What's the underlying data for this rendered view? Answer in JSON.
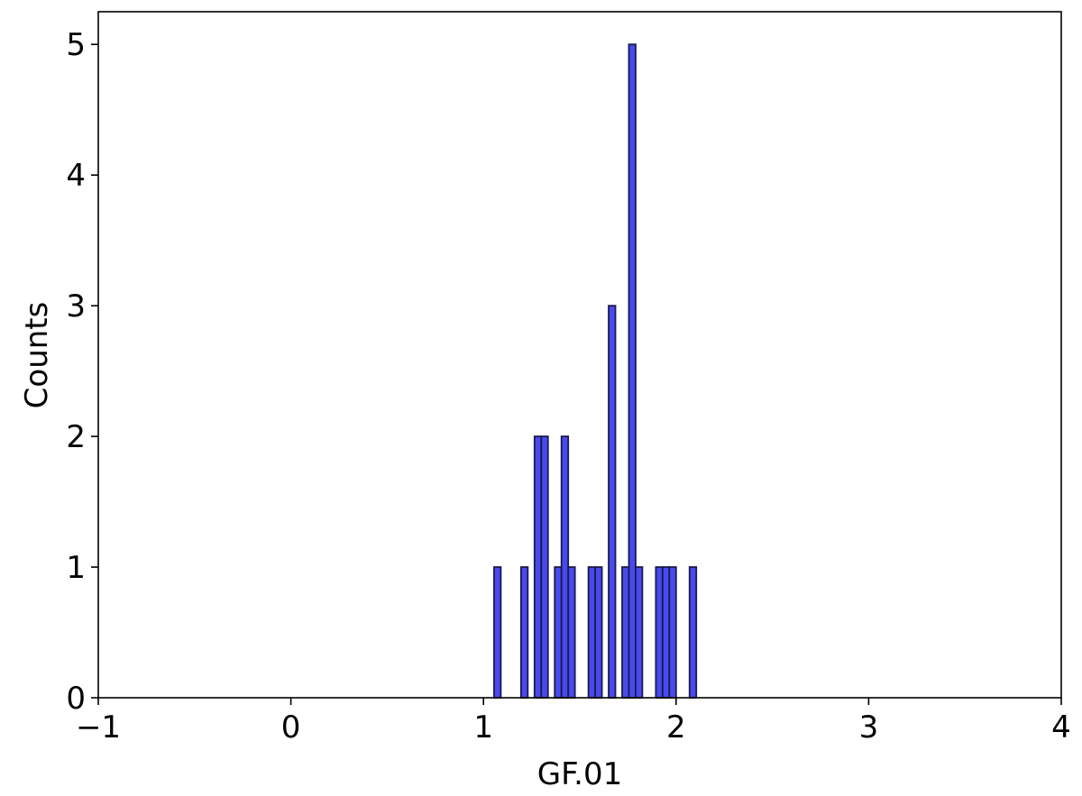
{
  "chart_data": {
    "type": "bar",
    "title": "",
    "xlabel": "GF.01",
    "ylabel": "Counts",
    "xlim": [
      -1,
      4
    ],
    "ylim": [
      0,
      5.25
    ],
    "xticks": [
      -1,
      0,
      1,
      2,
      3,
      4
    ],
    "xtick_labels": [
      "−1",
      "0",
      "1",
      "2",
      "3",
      "4"
    ],
    "yticks": [
      0,
      1,
      2,
      3,
      4,
      5
    ],
    "ytick_labels": [
      "0",
      "1",
      "2",
      "3",
      "4",
      "5"
    ],
    "bin_width": 0.035,
    "bar_color": "#4949f0",
    "edge_color": "#1a1a4a",
    "grid": false,
    "bars": [
      {
        "x": 1.055,
        "count": 1
      },
      {
        "x": 1.195,
        "count": 1
      },
      {
        "x": 1.265,
        "count": 2
      },
      {
        "x": 1.3,
        "count": 2
      },
      {
        "x": 1.37,
        "count": 1
      },
      {
        "x": 1.405,
        "count": 2
      },
      {
        "x": 1.44,
        "count": 1
      },
      {
        "x": 1.545,
        "count": 1
      },
      {
        "x": 1.58,
        "count": 1
      },
      {
        "x": 1.65,
        "count": 3
      },
      {
        "x": 1.72,
        "count": 1
      },
      {
        "x": 1.755,
        "count": 5
      },
      {
        "x": 1.79,
        "count": 1
      },
      {
        "x": 1.895,
        "count": 1
      },
      {
        "x": 1.93,
        "count": 1
      },
      {
        "x": 1.965,
        "count": 1
      },
      {
        "x": 2.07,
        "count": 1
      }
    ]
  }
}
